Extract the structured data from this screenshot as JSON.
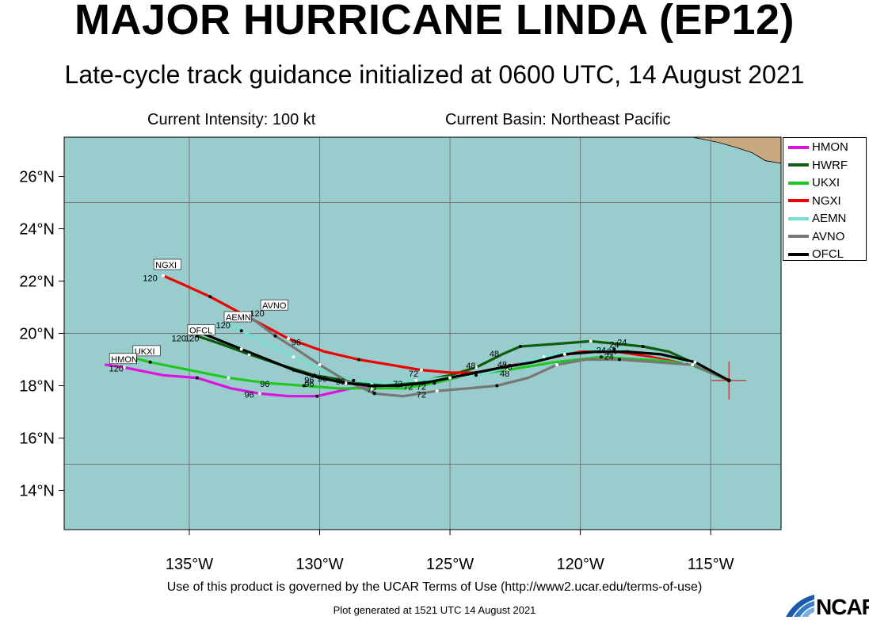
{
  "header": {
    "title": "MAJOR HURRICANE LINDA (EP12)",
    "subtitle": "Late-cycle track guidance initialized at 0600 UTC, 14 August 2021",
    "intensity": "Current Intensity: 100 kt",
    "basin": "Current Basin: Northeast Pacific"
  },
  "footer": {
    "terms": "Use of this product is governed by the UCAR Terms of Use (http://www2.ucar.edu/terms-of-use)",
    "generated": "Plot generated at 1521 UTC   14 August 2021",
    "logo_text": "NCAR"
  },
  "colors": {
    "ocean": "#99cccc",
    "land": "#c9a97f",
    "grid": "#777777"
  },
  "chart_data": {
    "type": "line",
    "xlim": [
      -139.8,
      -112.3
    ],
    "ylim": [
      12.5,
      27.5
    ],
    "x_ticks": [
      {
        "value": -135,
        "label": "135°W"
      },
      {
        "value": -130,
        "label": "130°W"
      },
      {
        "value": -125,
        "label": "125°W"
      },
      {
        "value": -120,
        "label": "120°W"
      },
      {
        "value": -115,
        "label": "115°W"
      }
    ],
    "y_ticks": [
      {
        "value": 14,
        "label": "14°N"
      },
      {
        "value": 16,
        "label": "16°N"
      },
      {
        "value": 18,
        "label": "18°N"
      },
      {
        "value": 20,
        "label": "20°N"
      },
      {
        "value": 22,
        "label": "22°N"
      },
      {
        "value": 24,
        "label": "24°N"
      },
      {
        "value": 26,
        "label": "26°N"
      }
    ],
    "grid_lon": [
      -135,
      -130,
      -125,
      -120,
      -115
    ],
    "grid_lat": [
      15,
      20,
      25
    ],
    "current_position": {
      "lon": -114.3,
      "lat": 18.2
    },
    "legend_position": "top-right",
    "series": [
      {
        "name": "HMON",
        "color": "#e010e0",
        "lon": [
          -114.3,
          -115.8,
          -117.2,
          -118.6,
          -120.0,
          -121.5,
          -123.0,
          -124.5,
          -126.0,
          -127.5,
          -128.8,
          -130.1,
          -131.2,
          -132.3,
          -133.4,
          -134.7,
          -136.0,
          -137.5,
          -138.2
        ],
        "lat": [
          18.2,
          18.9,
          19.1,
          19.3,
          19.3,
          19.0,
          18.7,
          18.4,
          18.1,
          18.0,
          17.9,
          17.6,
          17.6,
          17.7,
          17.9,
          18.3,
          18.4,
          18.7,
          18.8
        ]
      },
      {
        "name": "HWRF",
        "color": "#0e5c0e",
        "lon": [
          -114.3,
          -115.5,
          -116.6,
          -117.6,
          -118.6,
          -119.6,
          -120.9,
          -122.3,
          -123.0,
          -124.0,
          -125.0,
          -126.0,
          -127.0,
          -128.0,
          -129.0,
          -130.2,
          -131.5,
          -132.7,
          -133.8,
          -134.7
        ],
        "lat": [
          18.2,
          18.8,
          19.3,
          19.5,
          19.6,
          19.7,
          19.6,
          19.5,
          19.2,
          18.7,
          18.4,
          18.2,
          18.1,
          18.1,
          18.2,
          18.4,
          18.8,
          19.2,
          19.6,
          19.9
        ]
      },
      {
        "name": "UKXI",
        "color": "#22c622",
        "lon": [
          -114.3,
          -116.0,
          -117.6,
          -119.2,
          -121.0,
          -122.8,
          -124.4,
          -125.6,
          -126.8,
          -128.0,
          -129.3,
          -130.6,
          -132.0,
          -133.5,
          -135.0,
          -136.5,
          -137.3
        ],
        "lat": [
          18.2,
          18.9,
          19.0,
          19.1,
          18.9,
          18.6,
          18.4,
          18.1,
          17.9,
          17.9,
          17.9,
          18.0,
          18.1,
          18.3,
          18.6,
          18.9,
          19.1
        ]
      },
      {
        "name": "NGXI",
        "color": "#ee0000",
        "lon": [
          -114.3,
          -115.7,
          -117.2,
          -118.6,
          -120.0,
          -121.5,
          -123.0,
          -124.0,
          -125.0,
          -126.1,
          -127.3,
          -128.5,
          -129.8,
          -131.2,
          -132.7,
          -134.2,
          -135.3,
          -136.0
        ],
        "lat": [
          18.2,
          18.9,
          19.1,
          19.3,
          19.3,
          19.0,
          18.7,
          18.5,
          18.5,
          18.6,
          18.8,
          19.0,
          19.3,
          19.8,
          20.6,
          21.4,
          21.9,
          22.2
        ]
      },
      {
        "name": "AEMN",
        "color": "#77ddcc",
        "lon": [
          -114.3,
          -115.8,
          -117.3,
          -118.7,
          -120.0,
          -121.4,
          -122.8,
          -124.0,
          -125.2,
          -126.3,
          -127.5,
          -128.7,
          -129.9,
          -131.0,
          -132.0,
          -133.0,
          -133.5
        ],
        "lat": [
          18.2,
          18.9,
          19.2,
          19.4,
          19.4,
          19.1,
          18.7,
          18.4,
          18.3,
          18.2,
          18.1,
          18.2,
          18.6,
          19.1,
          19.6,
          20.1,
          20.4
        ]
      },
      {
        "name": "AVNO",
        "color": "#777777",
        "lon": [
          -114.3,
          -115.7,
          -117.1,
          -118.5,
          -119.8,
          -120.9,
          -122.0,
          -123.2,
          -124.3,
          -125.5,
          -126.8,
          -127.9,
          -129.0,
          -130.0,
          -130.9,
          -131.7,
          -132.5,
          -133.0
        ],
        "lat": [
          18.2,
          18.8,
          18.9,
          19.0,
          19.0,
          18.8,
          18.3,
          18.0,
          17.9,
          17.8,
          17.6,
          17.7,
          18.2,
          18.8,
          19.4,
          19.9,
          20.5,
          20.8
        ]
      },
      {
        "name": "OFCL",
        "color": "#000000",
        "lon": [
          -114.3,
          -115.6,
          -116.9,
          -118.2,
          -119.4,
          -120.6,
          -121.8,
          -123.0,
          -124.0,
          -125.0,
          -126.0,
          -127.0,
          -128.0,
          -129.0,
          -130.0,
          -131.0,
          -132.0,
          -133.0,
          -134.0,
          -134.5
        ],
        "lat": [
          18.2,
          18.9,
          19.2,
          19.3,
          19.3,
          19.2,
          18.9,
          18.7,
          18.5,
          18.3,
          18.1,
          18.0,
          18.0,
          18.1,
          18.3,
          18.6,
          19.0,
          19.4,
          19.8,
          20.0
        ]
      }
    ],
    "annotations": [
      {
        "text": "24",
        "lon": -118.4,
        "lat": 19.55
      },
      {
        "text": "24",
        "lon": -118.7,
        "lat": 19.45
      },
      {
        "text": "24",
        "lon": -118.8,
        "lat": 19.2
      },
      {
        "text": "24",
        "lon": -119.2,
        "lat": 19.25
      },
      {
        "text": "24",
        "lon": -118.9,
        "lat": 19.0
      },
      {
        "text": "48",
        "lon": -123.3,
        "lat": 19.1
      },
      {
        "text": "48",
        "lon": -123.0,
        "lat": 18.7
      },
      {
        "text": "48",
        "lon": -124.2,
        "lat": 18.65
      },
      {
        "text": "48",
        "lon": -122.9,
        "lat": 18.35
      },
      {
        "text": "48",
        "lon": -122.8,
        "lat": 18.6
      },
      {
        "text": "72",
        "lon": -126.4,
        "lat": 18.35
      },
      {
        "text": "72",
        "lon": -127.0,
        "lat": 17.95
      },
      {
        "text": "72",
        "lon": -126.6,
        "lat": 17.85
      },
      {
        "text": "72",
        "lon": -126.1,
        "lat": 17.85
      },
      {
        "text": "72",
        "lon": -128.0,
        "lat": 17.75
      },
      {
        "text": "72",
        "lon": -126.1,
        "lat": 17.55
      },
      {
        "text": "96",
        "lon": -130.9,
        "lat": 19.55
      },
      {
        "text": "96",
        "lon": -130.4,
        "lat": 18.1
      },
      {
        "text": "96",
        "lon": -130.4,
        "lat": 17.95
      },
      {
        "text": "96",
        "lon": -129.9,
        "lat": 18.15
      },
      {
        "text": "96",
        "lon": -129.2,
        "lat": 18.05
      },
      {
        "text": "96",
        "lon": -132.1,
        "lat": 17.95
      },
      {
        "text": "96",
        "lon": -132.7,
        "lat": 17.55
      },
      {
        "text": "120",
        "lon": -136.5,
        "lat": 22.0
      },
      {
        "text": "120",
        "lon": -137.8,
        "lat": 18.55
      },
      {
        "text": "120",
        "lon": -133.7,
        "lat": 20.2
      },
      {
        "text": "120",
        "lon": -132.4,
        "lat": 20.65
      },
      {
        "text": "120",
        "lon": -134.9,
        "lat": 19.7
      },
      {
        "text": "120",
        "lon": -135.4,
        "lat": 19.7
      }
    ],
    "endpoint_labels": [
      {
        "text": "NGXI",
        "lon": -136.3,
        "lat": 22.5
      },
      {
        "text": "AVNO",
        "lon": -132.2,
        "lat": 20.95
      },
      {
        "text": "AEMN",
        "lon": -133.6,
        "lat": 20.5
      },
      {
        "text": "OFCL",
        "lon": -135.0,
        "lat": 20.0
      },
      {
        "text": "UKXI",
        "lon": -137.1,
        "lat": 19.2
      },
      {
        "text": "HMON",
        "lon": -138.0,
        "lat": 18.9
      }
    ]
  }
}
